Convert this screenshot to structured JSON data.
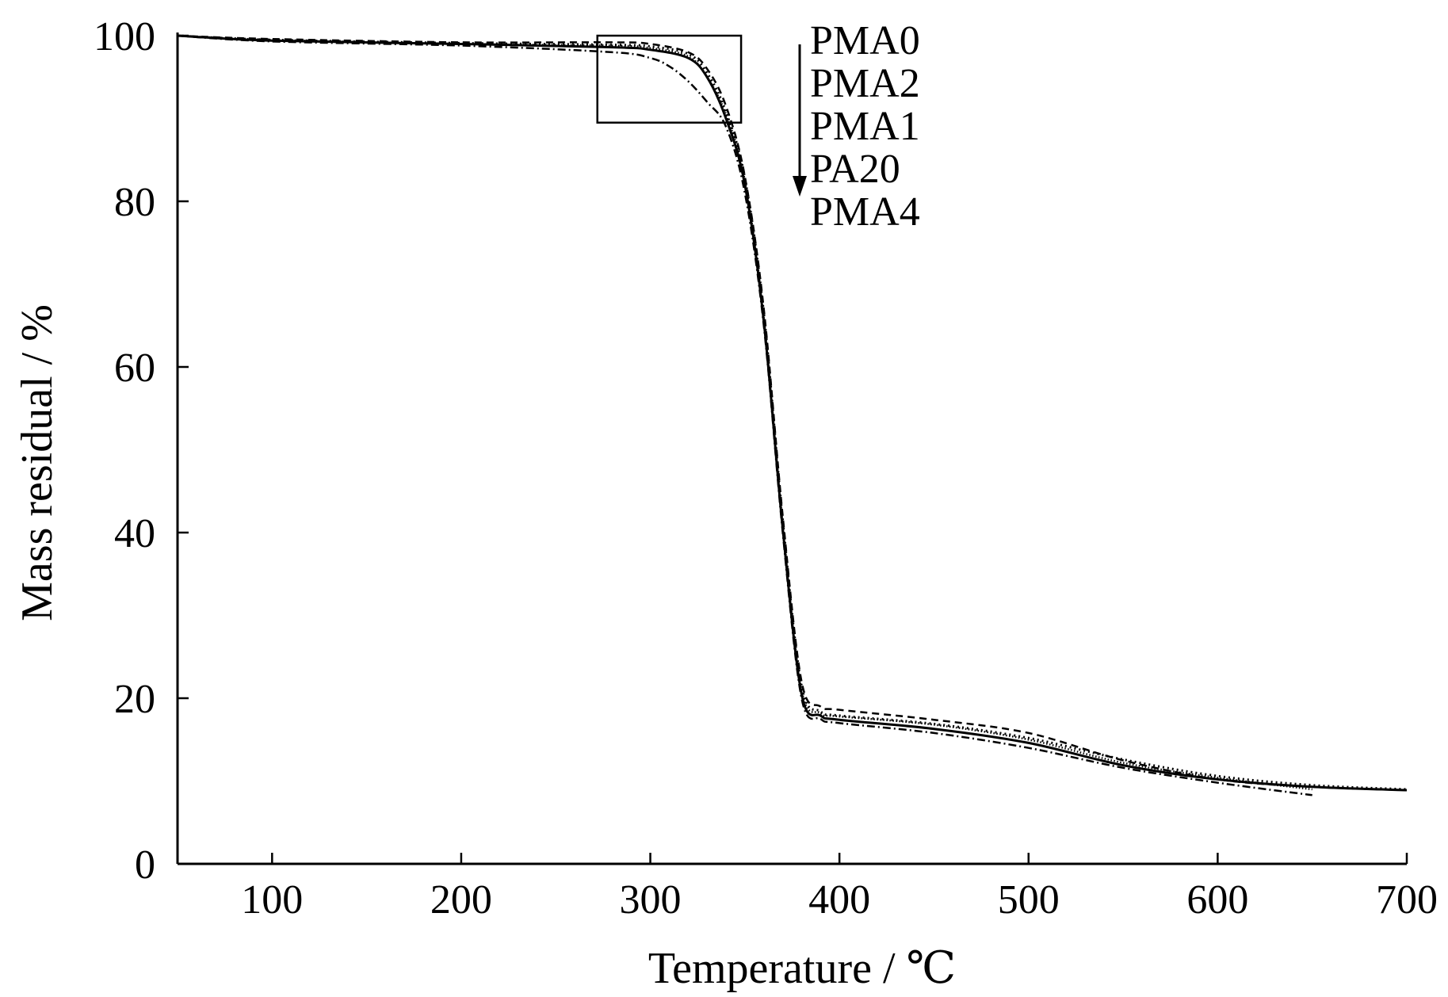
{
  "chart_data": {
    "type": "line",
    "title": "",
    "xlabel": "Temperature / ℃",
    "ylabel": "Mass residual / %",
    "xlim": [
      50,
      700
    ],
    "ylim": [
      0,
      100
    ],
    "xticks": [
      100,
      200,
      300,
      400,
      500,
      600,
      700
    ],
    "yticks": [
      0,
      20,
      40,
      60,
      80,
      100
    ],
    "grid": false,
    "legend_position": "top-right, ordered along a downward arrow",
    "legend_order": [
      "PMA0",
      "PMA2",
      "PMA1",
      "PA20",
      "PMA4"
    ],
    "zoom_box": {
      "x_range": [
        272,
        348
      ],
      "y_range": [
        89.5,
        100
      ]
    },
    "series": [
      {
        "name": "PMA0",
        "dash": "dashed",
        "x": [
          50,
          100,
          200,
          280,
          300,
          320,
          330,
          340,
          350,
          360,
          370,
          380,
          390,
          400,
          450,
          500,
          550,
          600,
          650,
          700
        ],
        "y": [
          100,
          99.6,
          99.2,
          99.2,
          99.0,
          98.0,
          96.0,
          91.5,
          83.0,
          67.0,
          42.0,
          22.0,
          19.0,
          18.6,
          17.4,
          15.8,
          12.5,
          10.2,
          9.3,
          8.9
        ]
      },
      {
        "name": "PMA2",
        "dash": "fine-dotted",
        "x": [
          50,
          100,
          200,
          280,
          300,
          320,
          330,
          340,
          350,
          360,
          370,
          380,
          390,
          400,
          450,
          500,
          550,
          600,
          650
        ],
        "y": [
          100,
          99.5,
          99.0,
          98.8,
          98.5,
          97.5,
          95.0,
          90.5,
          82.5,
          66.0,
          41.0,
          21.0,
          18.2,
          17.8,
          16.8,
          15.0,
          12.2,
          10.4,
          9.0
        ]
      },
      {
        "name": "PMA1",
        "dash": "solid",
        "x": [
          50,
          100,
          200,
          280,
          300,
          320,
          330,
          340,
          350,
          360,
          370,
          380,
          390,
          400,
          450,
          500,
          550,
          600,
          650,
          700
        ],
        "y": [
          100,
          99.4,
          99.0,
          98.6,
          98.3,
          97.3,
          95.0,
          90.0,
          82.0,
          65.5,
          40.5,
          20.5,
          17.9,
          17.4,
          16.3,
          14.6,
          11.9,
          10.2,
          9.3,
          8.9
        ]
      },
      {
        "name": "PA20",
        "dash": "dotted",
        "x": [
          50,
          100,
          200,
          280,
          300,
          320,
          330,
          340,
          350,
          360,
          370,
          380,
          390,
          400,
          450,
          500,
          550,
          600,
          650,
          700
        ],
        "y": [
          100,
          99.5,
          99.1,
          98.9,
          98.7,
          97.8,
          95.5,
          90.8,
          82.8,
          66.5,
          41.5,
          21.5,
          18.4,
          17.9,
          16.9,
          15.2,
          12.6,
          10.6,
          9.5,
          9.0
        ]
      },
      {
        "name": "PMA4",
        "dash": "dash-dot",
        "x": [
          50,
          100,
          200,
          280,
          300,
          310,
          320,
          330,
          340,
          350,
          360,
          370,
          380,
          390,
          400,
          450,
          500,
          550,
          600,
          650
        ],
        "y": [
          100,
          99.3,
          98.8,
          98.0,
          97.3,
          96.3,
          94.5,
          92.0,
          89.0,
          81.0,
          65.0,
          40.0,
          20.0,
          17.5,
          17.0,
          15.8,
          14.0,
          11.6,
          9.8,
          8.3
        ]
      }
    ]
  }
}
